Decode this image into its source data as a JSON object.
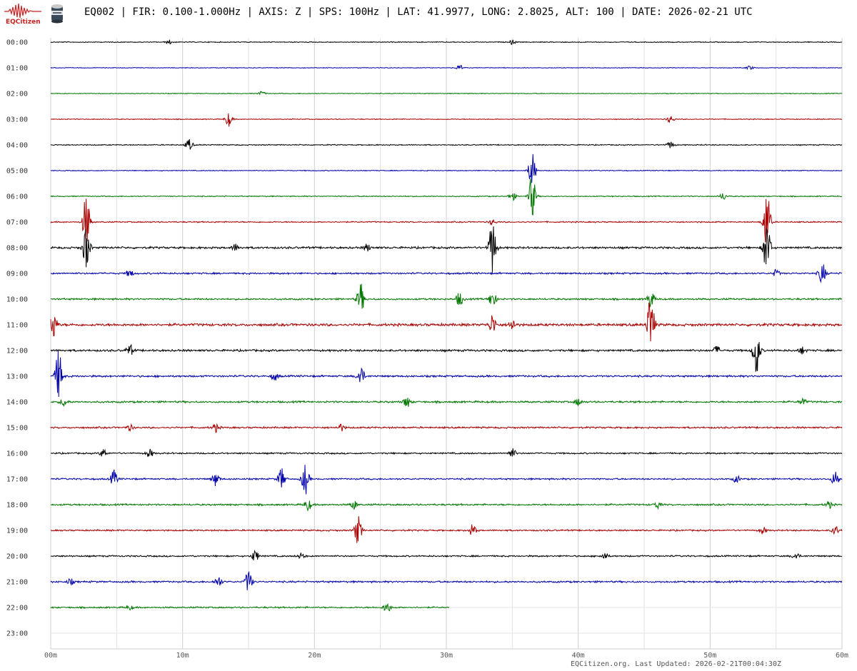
{
  "logo": {
    "text": "EQCitizen"
  },
  "header": {
    "title": "EQ002 | FIR: 0.100-1.000Hz | AXIS: Z | SPS: 100Hz | LAT: 41.9977, LONG: 2.8025, ALT: 100 | DATE: 2026-02-21 UTC"
  },
  "footer": {
    "note": "EQCitizen.org. Last Updated: 2026-02-21T00:04:30Z"
  },
  "chart_data": {
    "type": "line",
    "title": "EQ002 | FIR: 0.100-1.000Hz | AXIS: Z | SPS: 100Hz | LAT: 41.9977, LONG: 2.8025, ALT: 100 | DATE: 2026-02-21 UTC",
    "x_ticks": [
      "00m",
      "10m",
      "20m",
      "30m",
      "40m",
      "50m",
      "60m"
    ],
    "x_range_minutes": [
      0,
      60
    ],
    "grid": true,
    "row_colors": [
      "#000000",
      "#0000aa",
      "#007700",
      "#aa0000"
    ],
    "rows": [
      {
        "label": "00:00",
        "end_min": 60,
        "noise": 0.5,
        "events": [
          [
            9,
            3
          ],
          [
            35,
            3
          ]
        ]
      },
      {
        "label": "01:00",
        "end_min": 60,
        "noise": 0.4,
        "events": [
          [
            31,
            4
          ],
          [
            53,
            3
          ]
        ]
      },
      {
        "label": "02:00",
        "end_min": 60,
        "noise": 0.45,
        "events": [
          [
            16,
            3
          ]
        ]
      },
      {
        "label": "03:00",
        "end_min": 60,
        "noise": 0.5,
        "events": [
          [
            13.5,
            10
          ],
          [
            47,
            5
          ]
        ]
      },
      {
        "label": "04:00",
        "end_min": 60,
        "noise": 0.6,
        "events": [
          [
            10.5,
            8
          ],
          [
            47,
            5
          ]
        ]
      },
      {
        "label": "05:00",
        "end_min": 60,
        "noise": 0.5,
        "events": [
          [
            36.5,
            26
          ]
        ]
      },
      {
        "label": "06:00",
        "end_min": 60,
        "noise": 0.6,
        "events": [
          [
            36.5,
            30
          ],
          [
            35,
            6
          ],
          [
            51,
            5
          ]
        ]
      },
      {
        "label": "07:00",
        "end_min": 60,
        "noise": 0.7,
        "events": [
          [
            2.7,
            40
          ],
          [
            54.3,
            45
          ],
          [
            33.5,
            4
          ]
        ]
      },
      {
        "label": "08:00",
        "end_min": 60,
        "noise": 1.2,
        "events": [
          [
            2.7,
            30
          ],
          [
            33.5,
            40
          ],
          [
            54.3,
            40
          ],
          [
            14,
            5
          ],
          [
            24,
            5
          ]
        ]
      },
      {
        "label": "09:00",
        "end_min": 60,
        "noise": 1.0,
        "events": [
          [
            58.5,
            15
          ],
          [
            55,
            5
          ],
          [
            6,
            5
          ]
        ]
      },
      {
        "label": "10:00",
        "end_min": 60,
        "noise": 1.0,
        "events": [
          [
            23.5,
            22
          ],
          [
            31,
            10
          ],
          [
            45.5,
            12
          ],
          [
            33.5,
            12
          ]
        ]
      },
      {
        "label": "11:00",
        "end_min": 60,
        "noise": 1.5,
        "events": [
          [
            0.2,
            20
          ],
          [
            33.5,
            14
          ],
          [
            45.5,
            45
          ],
          [
            35,
            8
          ]
        ]
      },
      {
        "label": "12:00",
        "end_min": 60,
        "noise": 1.2,
        "events": [
          [
            6,
            8
          ],
          [
            53.5,
            35
          ],
          [
            50.5,
            6
          ],
          [
            57,
            5
          ]
        ]
      },
      {
        "label": "13:00",
        "end_min": 60,
        "noise": 1.1,
        "events": [
          [
            0.6,
            35
          ],
          [
            23.5,
            14
          ],
          [
            17,
            6
          ]
        ]
      },
      {
        "label": "14:00",
        "end_min": 60,
        "noise": 1.1,
        "events": [
          [
            1,
            6
          ],
          [
            27,
            8
          ],
          [
            40,
            5
          ],
          [
            57,
            5
          ]
        ]
      },
      {
        "label": "15:00",
        "end_min": 60,
        "noise": 1.0,
        "events": [
          [
            6,
            4
          ],
          [
            12.5,
            6
          ],
          [
            22,
            5
          ]
        ]
      },
      {
        "label": "16:00",
        "end_min": 60,
        "noise": 0.9,
        "events": [
          [
            4,
            6
          ],
          [
            7.5,
            6
          ],
          [
            35,
            7
          ]
        ]
      },
      {
        "label": "17:00",
        "end_min": 60,
        "noise": 0.9,
        "events": [
          [
            19.3,
            22
          ],
          [
            17.5,
            15
          ],
          [
            4.8,
            12
          ],
          [
            12.5,
            10
          ],
          [
            59.5,
            12
          ],
          [
            52,
            5
          ]
        ]
      },
      {
        "label": "18:00",
        "end_min": 60,
        "noise": 1.0,
        "events": [
          [
            19.5,
            8
          ],
          [
            23,
            6
          ],
          [
            46,
            5
          ],
          [
            59,
            5
          ]
        ]
      },
      {
        "label": "19:00",
        "end_min": 60,
        "noise": 0.9,
        "events": [
          [
            23.3,
            20
          ],
          [
            32,
            8
          ],
          [
            54,
            5
          ],
          [
            59.5,
            6
          ]
        ]
      },
      {
        "label": "20:00",
        "end_min": 60,
        "noise": 0.9,
        "events": [
          [
            15.5,
            8
          ],
          [
            56.5,
            5
          ],
          [
            19,
            4
          ],
          [
            42,
            5
          ]
        ]
      },
      {
        "label": "21:00",
        "end_min": 60,
        "noise": 1.0,
        "events": [
          [
            15,
            16
          ],
          [
            12.7,
            8
          ],
          [
            1.5,
            4
          ]
        ]
      },
      {
        "label": "22:00",
        "end_min": 30.2,
        "noise": 0.9,
        "events": [
          [
            25.5,
            8
          ],
          [
            6,
            3
          ]
        ]
      },
      {
        "label": "23:00",
        "end_min": 0,
        "noise": 0,
        "events": []
      }
    ]
  }
}
